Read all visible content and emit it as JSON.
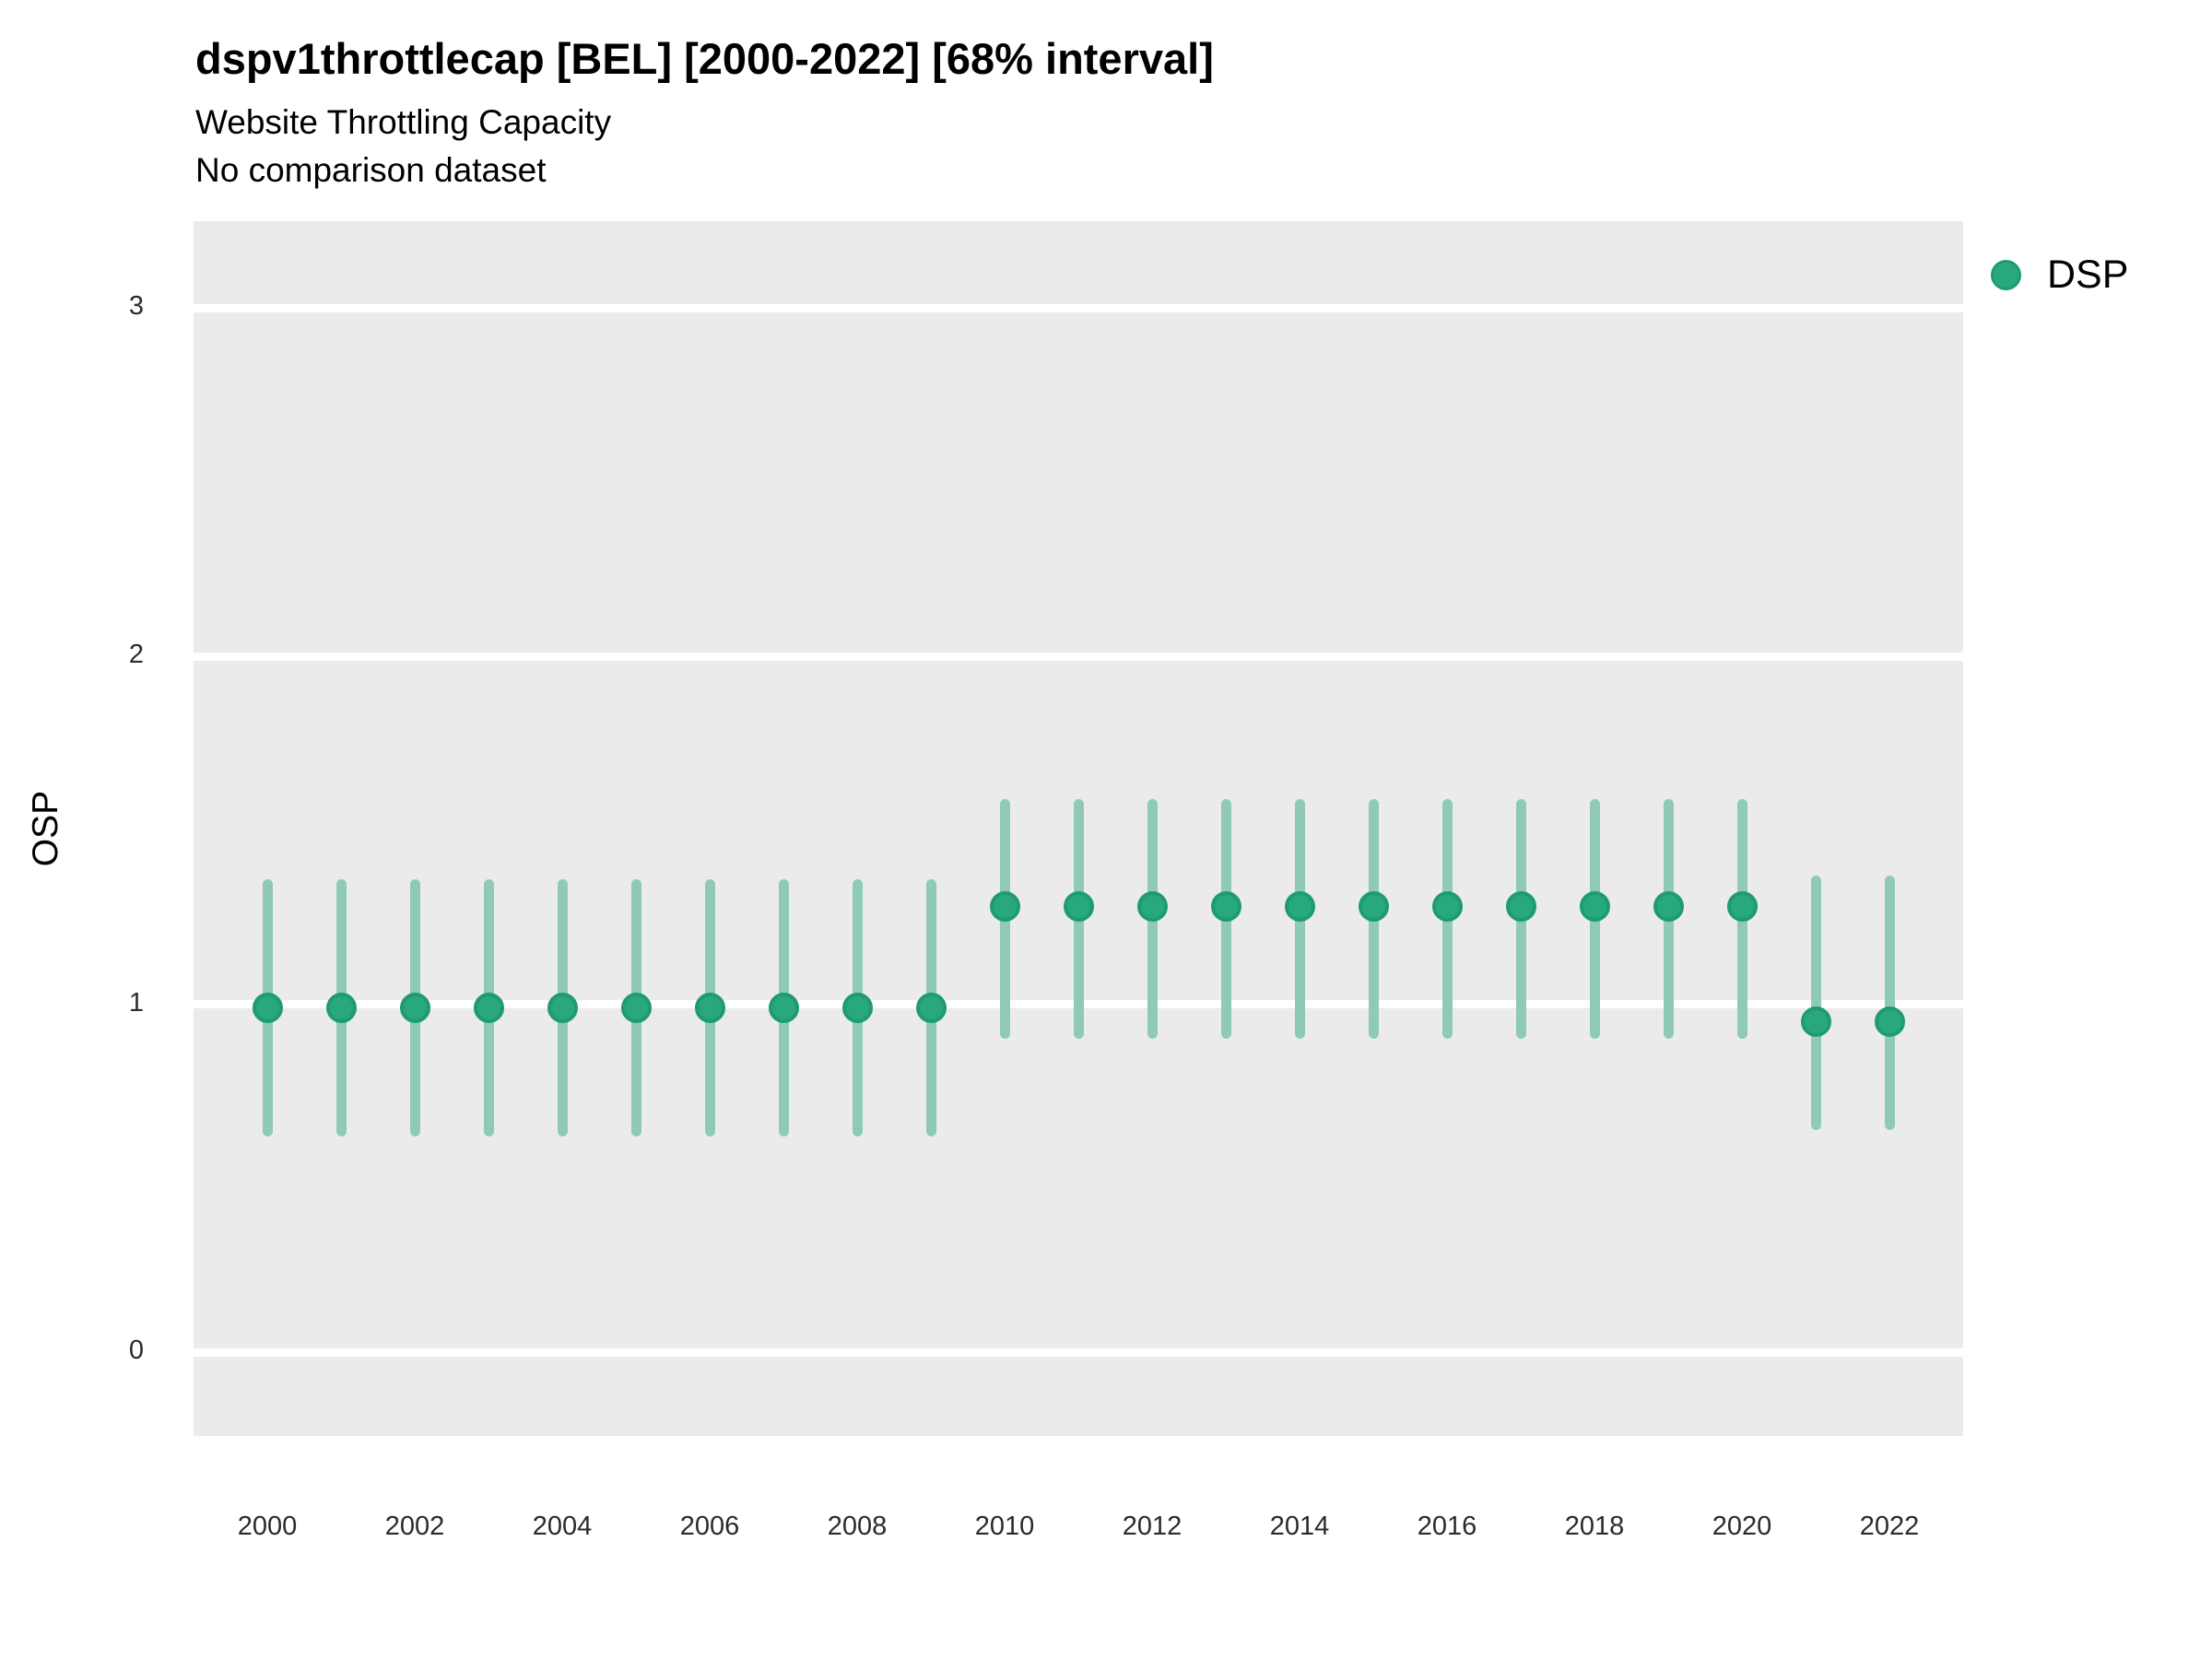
{
  "header": {
    "title": "dspv1throttlecap [BEL] [2000-2022] [68% interval]",
    "subtitle": "Website Throttling Capacity",
    "note": "No comparison dataset"
  },
  "legend": {
    "position": "right",
    "items": [
      {
        "label": "DSP",
        "color": "#2AA87D"
      }
    ]
  },
  "axes": {
    "y_title": "OSP",
    "y_tick_labels": [
      "0",
      "1",
      "2",
      "3"
    ],
    "x_tick_labels": [
      "2000",
      "2002",
      "2004",
      "2006",
      "2008",
      "2010",
      "2012",
      "2014",
      "2016",
      "2018",
      "2020",
      "2022"
    ]
  },
  "chart_data": {
    "type": "scatter",
    "subtype": "pointrange-interval",
    "title": "dspv1throttlecap [BEL] [2000-2022] [68% interval]",
    "subtitle": "Website Throttling Capacity",
    "note": "No comparison dataset",
    "interval": "68%",
    "xlabel": "",
    "ylabel": "OSP",
    "x": [
      2000,
      2001,
      2002,
      2003,
      2004,
      2005,
      2006,
      2007,
      2008,
      2009,
      2010,
      2011,
      2012,
      2013,
      2014,
      2015,
      2016,
      2017,
      2018,
      2019,
      2020,
      2021,
      2022
    ],
    "series": [
      {
        "name": "DSP",
        "mid": [
          0.99,
          0.99,
          0.99,
          0.99,
          0.99,
          0.99,
          0.99,
          0.99,
          0.99,
          0.99,
          1.28,
          1.28,
          1.28,
          1.28,
          1.28,
          1.28,
          1.28,
          1.28,
          1.28,
          1.28,
          1.28,
          0.95,
          0.95
        ],
        "lo": [
          0.62,
          0.62,
          0.62,
          0.62,
          0.62,
          0.62,
          0.62,
          0.62,
          0.62,
          0.62,
          0.9,
          0.9,
          0.9,
          0.9,
          0.9,
          0.9,
          0.9,
          0.9,
          0.9,
          0.9,
          0.9,
          0.64,
          0.64
        ],
        "hi": [
          1.36,
          1.36,
          1.36,
          1.36,
          1.36,
          1.36,
          1.36,
          1.36,
          1.36,
          1.36,
          1.59,
          1.59,
          1.59,
          1.59,
          1.59,
          1.59,
          1.59,
          1.59,
          1.59,
          1.59,
          1.59,
          1.37,
          1.37
        ]
      }
    ],
    "x_ticks": [
      2000,
      2002,
      2004,
      2006,
      2008,
      2010,
      2012,
      2014,
      2016,
      2018,
      2020,
      2022
    ],
    "y_ticks": [
      0,
      1,
      2,
      3
    ],
    "xlim": [
      1999,
      2023
    ],
    "ylim": [
      -0.24,
      3.25
    ],
    "grid": "horizontal-major-only",
    "legend_position": "right",
    "colors": {
      "point": "#2AA87D",
      "point_border": "#1E9C6E",
      "interval_bar": "#8FCBB4",
      "panel_background": "#EBEBEB",
      "gridline": "#FFFFFF",
      "text": "#000000",
      "tick_text": "#2B2B2B"
    }
  }
}
